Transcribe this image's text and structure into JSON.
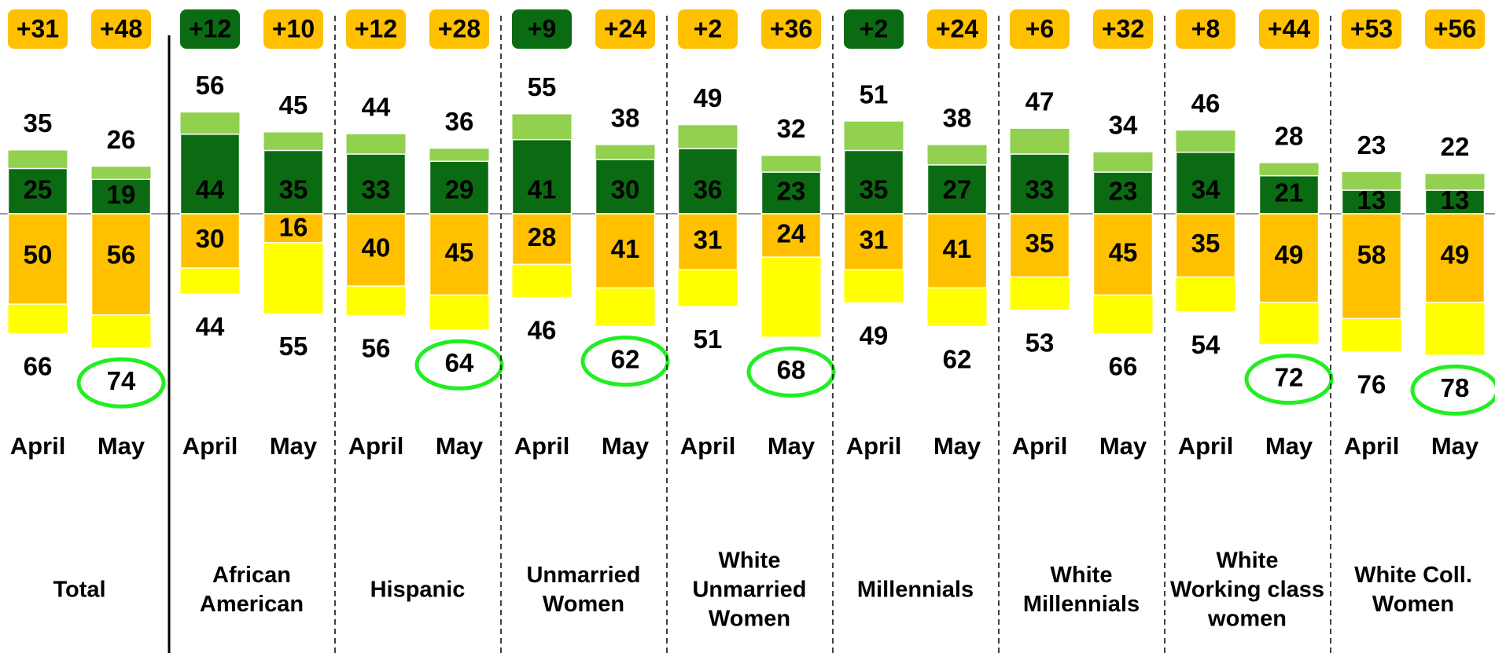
{
  "chart_data": {
    "type": "diverging_bar",
    "colors": {
      "top_total": "#92d050",
      "top_strong": "#0b6b12",
      "bottom_strong": "#ffc000",
      "bottom_total": "#ffff00",
      "circle": "#22ee22"
    },
    "groups": [
      {
        "name_lines": [
          "Total"
        ],
        "columns": [
          {
            "period": "April",
            "net": 31,
            "net_label": "+31",
            "net_color": "#ffc000",
            "top_total": 35,
            "top_strong": 25,
            "bottom_strong": 50,
            "bottom_total": 66,
            "circled": false
          },
          {
            "period": "May",
            "net": 48,
            "net_label": "+48",
            "net_color": "#ffc000",
            "top_total": 26,
            "top_strong": 19,
            "bottom_strong": 56,
            "bottom_total": 74,
            "circled": true
          }
        ]
      },
      {
        "name_lines": [
          "African",
          "American"
        ],
        "columns": [
          {
            "period": "April",
            "net": 12,
            "net_label": "+12",
            "net_color": "#0b6b12",
            "top_total": 56,
            "top_strong": 44,
            "bottom_strong": 30,
            "bottom_total": 44,
            "circled": false
          },
          {
            "period": "May",
            "net": 10,
            "net_label": "+10",
            "net_color": "#ffc000",
            "top_total": 45,
            "top_strong": 35,
            "bottom_strong": 16,
            "bottom_total": 55,
            "circled": false
          }
        ]
      },
      {
        "name_lines": [
          "Hispanic"
        ],
        "columns": [
          {
            "period": "April",
            "net": 12,
            "net_label": "+12",
            "net_color": "#ffc000",
            "top_total": 44,
            "top_strong": 33,
            "bottom_strong": 40,
            "bottom_total": 56,
            "circled": false
          },
          {
            "period": "May",
            "net": 28,
            "net_label": "+28",
            "net_color": "#ffc000",
            "top_total": 36,
            "top_strong": 29,
            "bottom_strong": 45,
            "bottom_total": 64,
            "circled": true
          }
        ]
      },
      {
        "name_lines": [
          "Unmarried",
          "Women"
        ],
        "columns": [
          {
            "period": "April",
            "net": 9,
            "net_label": "+9",
            "net_color": "#0b6b12",
            "top_total": 55,
            "top_strong": 41,
            "bottom_strong": 28,
            "bottom_total": 46,
            "circled": false
          },
          {
            "period": "May",
            "net": 24,
            "net_label": "+24",
            "net_color": "#ffc000",
            "top_total": 38,
            "top_strong": 30,
            "bottom_strong": 41,
            "bottom_total": 62,
            "circled": true
          }
        ]
      },
      {
        "name_lines": [
          "White",
          "Unmarried",
          "Women"
        ],
        "columns": [
          {
            "period": "April",
            "net": 2,
            "net_label": "+2",
            "net_color": "#ffc000",
            "top_total": 49,
            "top_strong": 36,
            "bottom_strong": 31,
            "bottom_total": 51,
            "circled": false
          },
          {
            "period": "May",
            "net": 36,
            "net_label": "+36",
            "net_color": "#ffc000",
            "top_total": 32,
            "top_strong": 23,
            "bottom_strong": 24,
            "bottom_total": 68,
            "circled": true
          }
        ]
      },
      {
        "name_lines": [
          "Millennials"
        ],
        "columns": [
          {
            "period": "April",
            "net": 2,
            "net_label": "+2",
            "net_color": "#0b6b12",
            "top_total": 51,
            "top_strong": 35,
            "bottom_strong": 31,
            "bottom_total": 49,
            "circled": false
          },
          {
            "period": "May",
            "net": 24,
            "net_label": "+24",
            "net_color": "#ffc000",
            "top_total": 38,
            "top_strong": 27,
            "bottom_strong": 41,
            "bottom_total": 62,
            "circled": false
          }
        ]
      },
      {
        "name_lines": [
          "White",
          "Millennials"
        ],
        "columns": [
          {
            "period": "April",
            "net": 6,
            "net_label": "+6",
            "net_color": "#ffc000",
            "top_total": 47,
            "top_strong": 33,
            "bottom_strong": 35,
            "bottom_total": 53,
            "circled": false
          },
          {
            "period": "May",
            "net": 32,
            "net_label": "+32",
            "net_color": "#ffc000",
            "top_total": 34,
            "top_strong": 23,
            "bottom_strong": 45,
            "bottom_total": 66,
            "circled": false
          }
        ]
      },
      {
        "name_lines": [
          "White",
          "Working class",
          "women"
        ],
        "columns": [
          {
            "period": "April",
            "net": 8,
            "net_label": "+8",
            "net_color": "#ffc000",
            "top_total": 46,
            "top_strong": 34,
            "bottom_strong": 35,
            "bottom_total": 54,
            "circled": false
          },
          {
            "period": "May",
            "net": 44,
            "net_label": "+44",
            "net_color": "#ffc000",
            "top_total": 28,
            "top_strong": 21,
            "bottom_strong": 49,
            "bottom_total": 72,
            "circled": true
          }
        ]
      },
      {
        "name_lines": [
          "White Coll.",
          "Women"
        ],
        "columns": [
          {
            "period": "April",
            "net": 53,
            "net_label": "+53",
            "net_color": "#ffc000",
            "top_total": 23,
            "top_strong": 13,
            "bottom_strong": 58,
            "bottom_total": 76,
            "circled": false
          },
          {
            "period": "May",
            "net": 56,
            "net_label": "+56",
            "net_color": "#ffc000",
            "top_total": 22,
            "top_strong": 13,
            "bottom_strong": 49,
            "bottom_total": 78,
            "circled": true
          }
        ]
      }
    ]
  }
}
